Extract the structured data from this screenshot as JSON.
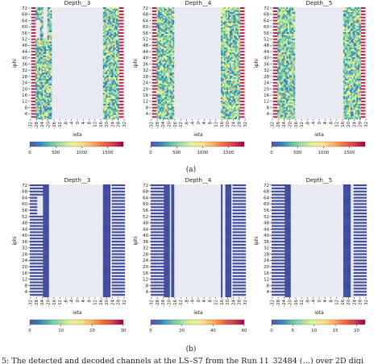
{
  "panel_labels": [
    "(a)",
    "(b)"
  ],
  "caption_fragment": "5: The detected and decoded channels at the LS–S7 from the Run 11_32484 (…) over 2D digi",
  "colors": {
    "background": "#e9eaf4",
    "dead": "#3f4b9a",
    "stripe_a": "#b51f4a",
    "stripe_b": "#f4f4ee",
    "colormap": [
      "#5e4fa2",
      "#3288bd",
      "#66c2a5",
      "#abdda4",
      "#e6f598",
      "#fee08b",
      "#fdae61",
      "#f46d43",
      "#d53e4f",
      "#9e0142"
    ]
  },
  "chart_data": [
    {
      "type": "heatmap",
      "row": "a",
      "title": "Depth__3",
      "xlabel": "ieta",
      "ylabel": "iphi",
      "x_ticks": [
        "-32",
        "-28",
        "-24",
        "-20",
        "-16",
        "-12",
        "-8",
        "-4",
        "0",
        "4",
        "8",
        "12",
        "16",
        "20",
        "24",
        "28",
        "32"
      ],
      "y_ticks": [
        "4",
        "8",
        "12",
        "16",
        "20",
        "24",
        "28",
        "32",
        "36",
        "40",
        "44",
        "48",
        "52",
        "56",
        "60",
        "64",
        "68",
        "72"
      ],
      "xlim": [
        -32,
        32
      ],
      "ylim": [
        1,
        72
      ],
      "colorbar": {
        "range": [
          0,
          1800
        ],
        "ticks": [
          "0",
          "500",
          "1000",
          "1500"
        ]
      },
      "data": {
        "stripes": [
          [
            -31,
            -29
          ],
          [
            29,
            31
          ]
        ],
        "filled": [
          [
            -28,
            -18
          ],
          [
            18,
            28
          ]
        ],
        "dead": [],
        "missing_cells": [
          [
            -28,
            -26,
            53,
            64
          ],
          [
            -23,
            -21,
            53,
            72
          ]
        ]
      }
    },
    {
      "type": "heatmap",
      "row": "a",
      "title": "Depth__4",
      "xlabel": "ieta",
      "ylabel": "iphi",
      "x_ticks": [
        "-32",
        "-28",
        "-24",
        "-20",
        "-16",
        "-12",
        "-8",
        "-4",
        "0",
        "4",
        "8",
        "12",
        "16",
        "20",
        "24",
        "28",
        "32"
      ],
      "y_ticks": [
        "4",
        "8",
        "12",
        "16",
        "20",
        "24",
        "28",
        "32",
        "36",
        "40",
        "44",
        "48",
        "52",
        "56",
        "60",
        "64",
        "68",
        "72"
      ],
      "xlim": [
        -32,
        32
      ],
      "ylim": [
        1,
        72
      ],
      "colorbar": {
        "range": [
          0,
          1800
        ],
        "ticks": [
          "0",
          "500",
          "1000",
          "1500"
        ]
      },
      "data": {
        "stripes": [
          [
            -31,
            -29
          ],
          [
            29,
            31
          ]
        ],
        "filled": [
          [
            -28,
            -17
          ],
          [
            16,
            28
          ]
        ],
        "dead": [],
        "missing_cells": []
      }
    },
    {
      "type": "heatmap",
      "row": "a",
      "title": "Depth__5",
      "xlabel": "ieta",
      "ylabel": "iphi",
      "x_ticks": [
        "-32",
        "-28",
        "-24",
        "-20",
        "-16",
        "-12",
        "-8",
        "-4",
        "0",
        "4",
        "8",
        "12",
        "16",
        "20",
        "24",
        "28",
        "32"
      ],
      "y_ticks": [
        "4",
        "8",
        "12",
        "16",
        "20",
        "24",
        "28",
        "32",
        "36",
        "40",
        "44",
        "48",
        "52",
        "56",
        "60",
        "64",
        "68",
        "72"
      ],
      "xlim": [
        -32,
        32
      ],
      "ylim": [
        1,
        72
      ],
      "colorbar": {
        "range": [
          0,
          1800
        ],
        "ticks": [
          "0",
          "500",
          "1000",
          "1500"
        ]
      },
      "data": {
        "stripes": [
          [
            -31,
            -29
          ],
          [
            29,
            31
          ]
        ],
        "filled": [
          [
            -28,
            -17
          ],
          [
            17,
            28
          ]
        ],
        "dead": [],
        "missing_cells": []
      }
    },
    {
      "type": "heatmap",
      "row": "b",
      "title": "Depth__3",
      "xlabel": "ieta",
      "ylabel": "iphi",
      "x_ticks": [
        "-32",
        "-28",
        "-24",
        "-20",
        "-16",
        "-12",
        "-8",
        "-4",
        "0",
        "4",
        "8",
        "12",
        "16",
        "20",
        "24",
        "28",
        "32"
      ],
      "y_ticks": [
        "4",
        "8",
        "12",
        "16",
        "20",
        "24",
        "28",
        "32",
        "36",
        "40",
        "44",
        "48",
        "52",
        "56",
        "60",
        "64",
        "68",
        "72"
      ],
      "xlim": [
        -32,
        32
      ],
      "ylim": [
        1,
        72
      ],
      "colorbar": {
        "range": [
          0,
          30
        ],
        "ticks": [
          "0",
          "10",
          "20",
          "30"
        ]
      },
      "data": {
        "stripes": [
          [
            -32,
            -24
          ],
          [
            24,
            32
          ]
        ],
        "filled": [],
        "dead": [
          [
            -23,
            -20
          ],
          [
            18,
            22
          ]
        ],
        "missing_cells": [
          [
            -27,
            -24,
            53,
            64
          ]
        ]
      }
    },
    {
      "type": "heatmap",
      "row": "b",
      "title": "Depth__4",
      "xlabel": "ieta",
      "ylabel": "iphi",
      "x_ticks": [
        "-32",
        "-28",
        "-24",
        "-20",
        "-16",
        "-12",
        "-8",
        "-4",
        "0",
        "4",
        "8",
        "12",
        "16",
        "20",
        "24",
        "28",
        "32"
      ],
      "y_ticks": [
        "4",
        "8",
        "12",
        "16",
        "20",
        "24",
        "28",
        "32",
        "36",
        "40",
        "44",
        "48",
        "52",
        "56",
        "60",
        "64",
        "68",
        "72"
      ],
      "xlim": [
        -32,
        32
      ],
      "ylim": [
        1,
        72
      ],
      "colorbar": {
        "range": [
          0,
          60
        ],
        "ticks": [
          "0",
          "20",
          "40",
          "60"
        ]
      },
      "data": {
        "stripes": [
          [
            -32,
            -24
          ],
          [
            24,
            32
          ]
        ],
        "filled": [],
        "dead": [
          [
            -23,
            -20
          ],
          [
            -18,
            -17
          ],
          [
            16,
            16
          ],
          [
            19,
            22
          ]
        ],
        "missing_cells": []
      }
    },
    {
      "type": "heatmap",
      "row": "b",
      "title": "Depth__5",
      "xlabel": "ieta",
      "ylabel": "iphi",
      "x_ticks": [
        "-32",
        "-28",
        "-24",
        "-20",
        "-16",
        "-12",
        "-8",
        "-4",
        "0",
        "4",
        "8",
        "12",
        "16",
        "20",
        "24",
        "28",
        "32"
      ],
      "y_ticks": [
        "4",
        "8",
        "12",
        "16",
        "20",
        "24",
        "28",
        "32",
        "36",
        "40",
        "44",
        "48",
        "52",
        "56",
        "60",
        "64",
        "68",
        "72"
      ],
      "xlim": [
        -32,
        32
      ],
      "ylim": [
        1,
        72
      ],
      "colorbar": {
        "range": [
          0,
          22
        ],
        "ticks": [
          "0",
          "5",
          "10",
          "15",
          "20"
        ]
      },
      "data": {
        "stripes": [
          [
            -32,
            -24
          ],
          [
            24,
            32
          ]
        ],
        "filled": [],
        "dead": [
          [
            -23,
            -20
          ],
          [
            17,
            21
          ]
        ],
        "missing_cells": []
      }
    }
  ]
}
